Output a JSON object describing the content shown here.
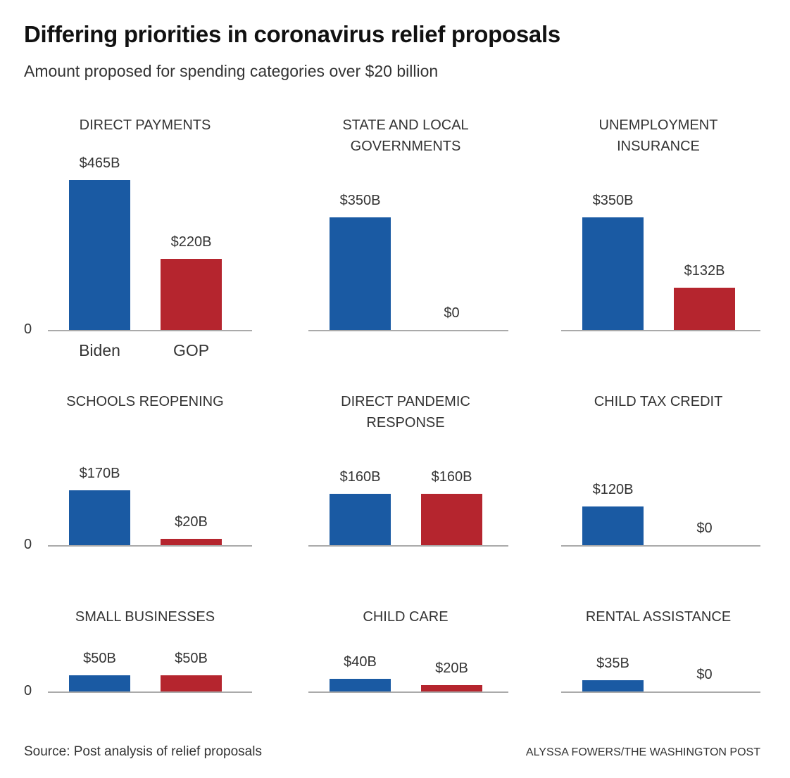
{
  "title": "Differing priorities in coronavirus relief proposals",
  "subtitle": "Amount proposed for spending categories over $20 billion",
  "source": "Source: Post analysis of relief proposals",
  "credit": "ALYSSA FOWERS/THE WASHINGTON POST",
  "colors": {
    "Biden": "#1a5aa3",
    "GOP": "#b5252e",
    "axis": "#aaaaaa"
  },
  "chart_data": {
    "type": "bar",
    "layout": "small multiples, 3x3 grid, shared scale",
    "categories": [
      "Biden",
      "GOP"
    ],
    "unit": "billion dollars",
    "zero_label": "0",
    "ylim": [
      0,
      465
    ],
    "grid": false,
    "panels": [
      {
        "title": [
          "DIRECT PAYMENTS"
        ],
        "values": [
          465,
          220
        ],
        "labels": [
          "$465B",
          "$220B"
        ]
      },
      {
        "title": [
          "STATE AND LOCAL",
          "GOVERNMENTS"
        ],
        "values": [
          350,
          0
        ],
        "labels": [
          "$350B",
          "$0"
        ]
      },
      {
        "title": [
          "UNEMPLOYMENT",
          "INSURANCE"
        ],
        "values": [
          350,
          132
        ],
        "labels": [
          "$350B",
          "$132B"
        ]
      },
      {
        "title": [
          "SCHOOLS REOPENING"
        ],
        "values": [
          170,
          20
        ],
        "labels": [
          "$170B",
          "$20B"
        ]
      },
      {
        "title": [
          "DIRECT PANDEMIC",
          "RESPONSE"
        ],
        "values": [
          160,
          160
        ],
        "labels": [
          "$160B",
          "$160B"
        ]
      },
      {
        "title": [
          "CHILD TAX CREDIT"
        ],
        "values": [
          120,
          0
        ],
        "labels": [
          "$120B",
          "$0"
        ]
      },
      {
        "title": [
          "SMALL BUSINESSES"
        ],
        "values": [
          50,
          50
        ],
        "labels": [
          "$50B",
          "$50B"
        ]
      },
      {
        "title": [
          "CHILD CARE"
        ],
        "values": [
          40,
          20
        ],
        "labels": [
          "$40B",
          "$20B"
        ]
      },
      {
        "title": [
          "RENTAL ASSISTANCE"
        ],
        "values": [
          35,
          0
        ],
        "labels": [
          "$35B",
          "$0"
        ]
      }
    ]
  }
}
